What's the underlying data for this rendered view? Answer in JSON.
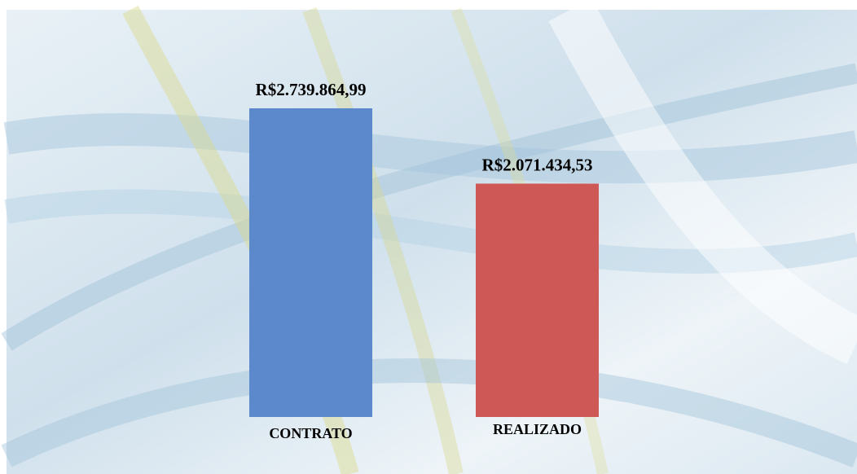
{
  "chart_data": {
    "type": "bar",
    "categories": [
      "CONTRATO",
      "REALIZADO"
    ],
    "values": [
      2739864.99,
      2071434.53
    ],
    "value_labels": [
      "R$2.739.864,99",
      "R$2.071.434,53"
    ],
    "colors": [
      "#5b89cc",
      "#cd5855"
    ]
  }
}
